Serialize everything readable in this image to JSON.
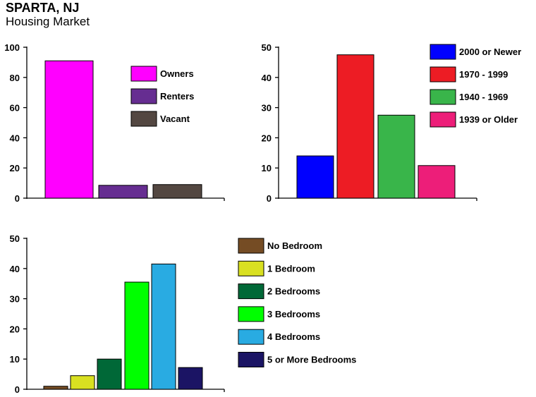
{
  "header": {
    "title": "SPARTA, NJ",
    "subtitle": "Housing Market"
  },
  "chart_data": [
    {
      "type": "bar",
      "categories": [
        "Owners",
        "Renters",
        "Vacant"
      ],
      "values": [
        91,
        8.5,
        9
      ],
      "colors": [
        "#ff00ff",
        "#662d91",
        "#534741"
      ],
      "ylim": [
        0,
        100
      ],
      "yticks": [
        0,
        20,
        40,
        60,
        80,
        100
      ],
      "legend": "right"
    },
    {
      "type": "bar",
      "categories": [
        "2000 or Newer",
        "1970 - 1999",
        "1940 - 1969",
        "1939 or Older"
      ],
      "values": [
        14,
        47.5,
        27.5,
        10.8
      ],
      "colors": [
        "#0000ff",
        "#ed1c24",
        "#39b54a",
        "#ed1e79"
      ],
      "ylim": [
        0,
        50
      ],
      "yticks": [
        0,
        10,
        20,
        30,
        40,
        50
      ],
      "legend": "top-right"
    },
    {
      "type": "bar",
      "categories": [
        "No Bedroom",
        "1 Bedroom",
        "2 Bedrooms",
        "3 Bedrooms",
        "4 Bedrooms",
        "5 or More Bedrooms"
      ],
      "values": [
        1,
        4.5,
        10,
        35.5,
        41.5,
        7.2
      ],
      "colors": [
        "#754c24",
        "#d9e021",
        "#006837",
        "#00ff00",
        "#29abe2",
        "#1b1464"
      ],
      "ylim": [
        0,
        50
      ],
      "yticks": [
        0,
        10,
        20,
        30,
        40,
        50
      ],
      "legend": "right"
    }
  ]
}
